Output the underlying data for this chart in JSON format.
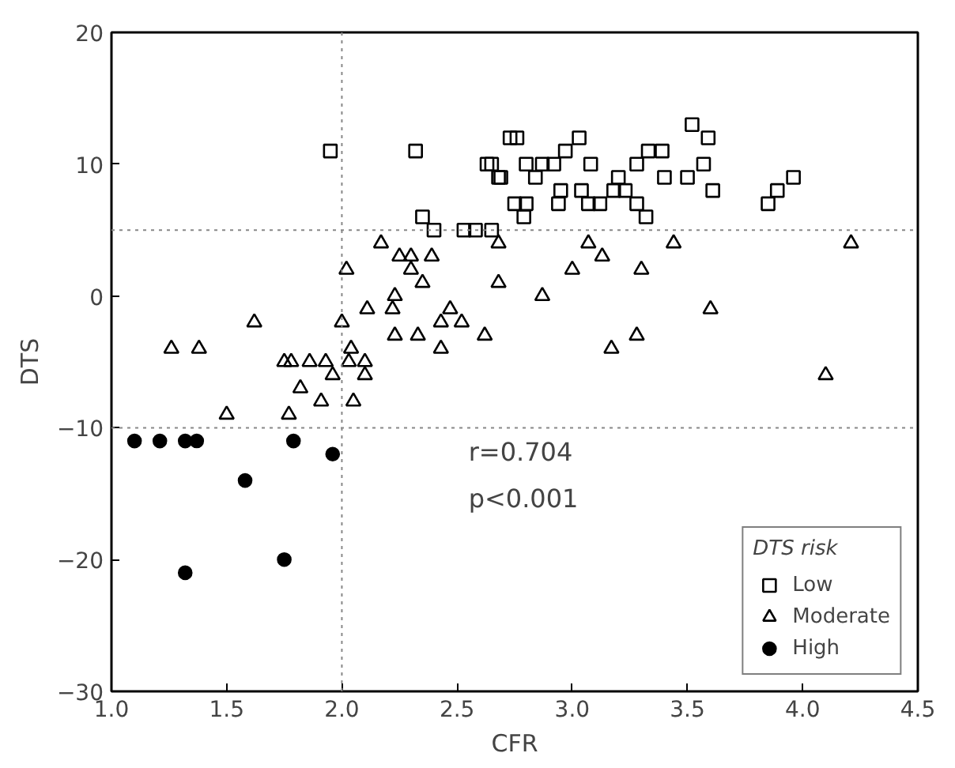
{
  "chart_data": {
    "type": "scatter",
    "xlabel": "CFR",
    "ylabel": "DTS",
    "legend_title": "DTS risk",
    "legend": "bottom right",
    "grid": false,
    "xlim": [
      1.0,
      4.5
    ],
    "xticks": [
      {
        "value": 1.0,
        "label": "1.0"
      },
      {
        "value": 1.5,
        "label": "1.5"
      },
      {
        "value": 2.0,
        "label": "2.0"
      },
      {
        "value": 2.5,
        "label": "2.5"
      },
      {
        "value": 3.0,
        "label": "3.0"
      },
      {
        "value": 3.5,
        "label": "3.5"
      },
      {
        "value": 4.0,
        "label": "4.0"
      },
      {
        "value": 4.5,
        "label": "4.5"
      }
    ],
    "ylim": [
      -30,
      20
    ],
    "yticks": [
      {
        "value": -30,
        "label": "−30"
      },
      {
        "value": -20,
        "label": "−20"
      },
      {
        "value": -10,
        "label": "−10"
      },
      0,
      10,
      20
    ],
    "annotations": [
      "r=0.704",
      "p<0.001"
    ],
    "ref_lines": [
      {
        "axis": "x",
        "value": 2.0,
        "line_style": "dotted"
      },
      {
        "axis": "y",
        "value": 5,
        "line_style": "dotted"
      },
      {
        "axis": "y",
        "value": -10,
        "line_style": "dotted"
      }
    ],
    "series": [
      {
        "name": "Low",
        "color": "#000000",
        "marker": "square",
        "x": [
          1.95,
          2.32,
          2.73,
          2.76,
          3.52,
          3.59,
          3.03,
          2.97,
          3.33,
          3.39,
          2.63,
          2.65,
          2.8,
          2.87,
          2.92,
          3.08,
          3.28,
          3.57,
          2.68,
          2.69,
          2.84,
          3.2,
          3.4,
          3.5,
          3.96,
          2.95,
          3.04,
          3.18,
          3.23,
          3.61,
          3.89,
          2.75,
          2.8,
          2.94,
          3.07,
          3.12,
          3.28,
          3.85,
          2.79,
          3.32,
          2.35,
          2.4,
          2.53,
          2.58,
          2.65
        ],
        "values": [
          11,
          11,
          12,
          12,
          13,
          12,
          12,
          11,
          11,
          11,
          10,
          10,
          10,
          10,
          10,
          10,
          10,
          10,
          9,
          9,
          9,
          9,
          9,
          9,
          9,
          8,
          8,
          8,
          8,
          8,
          8,
          7,
          7,
          7,
          7,
          7,
          7,
          7,
          6,
          6,
          6,
          5,
          5,
          5,
          5
        ]
      },
      {
        "name": "Moderate",
        "color": "#000000",
        "marker": "triangle",
        "x": [
          1.26,
          1.38,
          1.5,
          1.77,
          1.62,
          1.75,
          1.78,
          1.86,
          1.93,
          1.96,
          1.82,
          1.91,
          2.05,
          2.0,
          2.02,
          2.04,
          2.03,
          2.1,
          2.1,
          2.11,
          2.17,
          2.25,
          2.3,
          2.3,
          2.35,
          2.39,
          2.23,
          2.22,
          2.23,
          2.33,
          2.43,
          2.43,
          2.47,
          2.52,
          2.62,
          2.68,
          2.68,
          3.07,
          3.13,
          3.0,
          3.3,
          2.87,
          3.44,
          3.6,
          4.21,
          4.1,
          3.17,
          3.28
        ],
        "values": [
          -4,
          -4,
          -9,
          -9,
          -2,
          -5,
          -5,
          -5,
          -5,
          -6,
          -7,
          -8,
          -8,
          -2,
          2,
          -4,
          -5,
          -5,
          -6,
          -1,
          4,
          3,
          3,
          2,
          1,
          3,
          0,
          -1,
          -3,
          -3,
          -2,
          -4,
          -1,
          -2,
          -3,
          4,
          1,
          4,
          3,
          2,
          2,
          0,
          4,
          -1,
          4,
          -6,
          -4,
          -3
        ]
      },
      {
        "name": "High",
        "color": "#000000",
        "marker": "circle",
        "x": [
          1.1,
          1.21,
          1.32,
          1.37,
          1.58,
          1.32,
          1.75,
          1.79,
          1.96
        ],
        "values": [
          -11,
          -11,
          -11,
          -11,
          -14,
          -21,
          -20,
          -11,
          -12
        ]
      }
    ]
  }
}
